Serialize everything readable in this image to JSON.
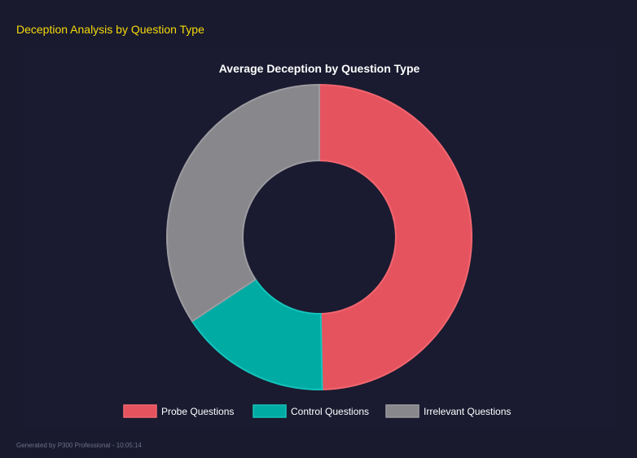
{
  "page": {
    "title": "Deception Analysis by Question Type",
    "footer": "Generated by P300 Professional - 10:05:14"
  },
  "chart_data": {
    "type": "pie",
    "variant": "doughnut",
    "title": "Average Deception by Question Type",
    "categories": [
      "Probe Questions",
      "Control Questions",
      "Irrelevant Questions"
    ],
    "values": [
      49.7,
      16.0,
      34.3
    ],
    "colors": [
      "#e5535f",
      "#00aba3",
      "#88878c"
    ],
    "border_colors": [
      "#f2666f",
      "#14c4bb",
      "#9c9ba0"
    ],
    "legend": "bottom"
  }
}
